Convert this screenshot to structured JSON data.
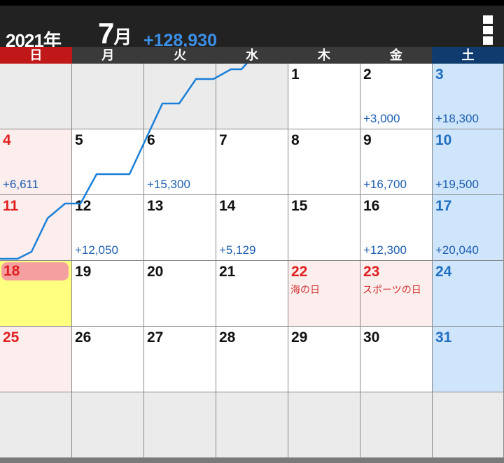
{
  "header": {
    "year": "2021年",
    "month": "7",
    "month_suffix": "月",
    "total": "+128,930",
    "menu_icon": "more-vertical-icon"
  },
  "weekdays": [
    "日",
    "月",
    "火",
    "水",
    "木",
    "金",
    "土"
  ],
  "colors": {
    "accent": "#3b8fe6",
    "sunday": "#c01818",
    "saturday": "#0f3b6e",
    "today": "#ffff80"
  },
  "today": 18,
  "weeks": [
    [
      null,
      null,
      null,
      null,
      {
        "d": "1"
      },
      {
        "d": "2",
        "amt": "+3,000"
      },
      {
        "d": "3",
        "amt": "+18,300"
      }
    ],
    [
      {
        "d": "4",
        "amt": "+6,611"
      },
      {
        "d": "5"
      },
      {
        "d": "6",
        "amt": "+15,300"
      },
      {
        "d": "7"
      },
      {
        "d": "8"
      },
      {
        "d": "9",
        "amt": "+16,700"
      },
      {
        "d": "10",
        "amt": "+19,500"
      }
    ],
    [
      {
        "d": "11"
      },
      {
        "d": "12",
        "amt": "+12,050"
      },
      {
        "d": "13"
      },
      {
        "d": "14",
        "amt": "+5,129"
      },
      {
        "d": "15"
      },
      {
        "d": "16",
        "amt": "+12,300"
      },
      {
        "d": "17",
        "amt": "+20,040"
      }
    ],
    [
      {
        "d": "18"
      },
      {
        "d": "19"
      },
      {
        "d": "20"
      },
      {
        "d": "21"
      },
      {
        "d": "22",
        "holiday": "海の日"
      },
      {
        "d": "23",
        "holiday": "スポーツの日"
      },
      {
        "d": "24"
      }
    ],
    [
      {
        "d": "25"
      },
      {
        "d": "26"
      },
      {
        "d": "27"
      },
      {
        "d": "28"
      },
      {
        "d": "29"
      },
      {
        "d": "30"
      },
      {
        "d": "31"
      }
    ],
    [
      null,
      null,
      null,
      null,
      null,
      null,
      null
    ]
  ]
}
